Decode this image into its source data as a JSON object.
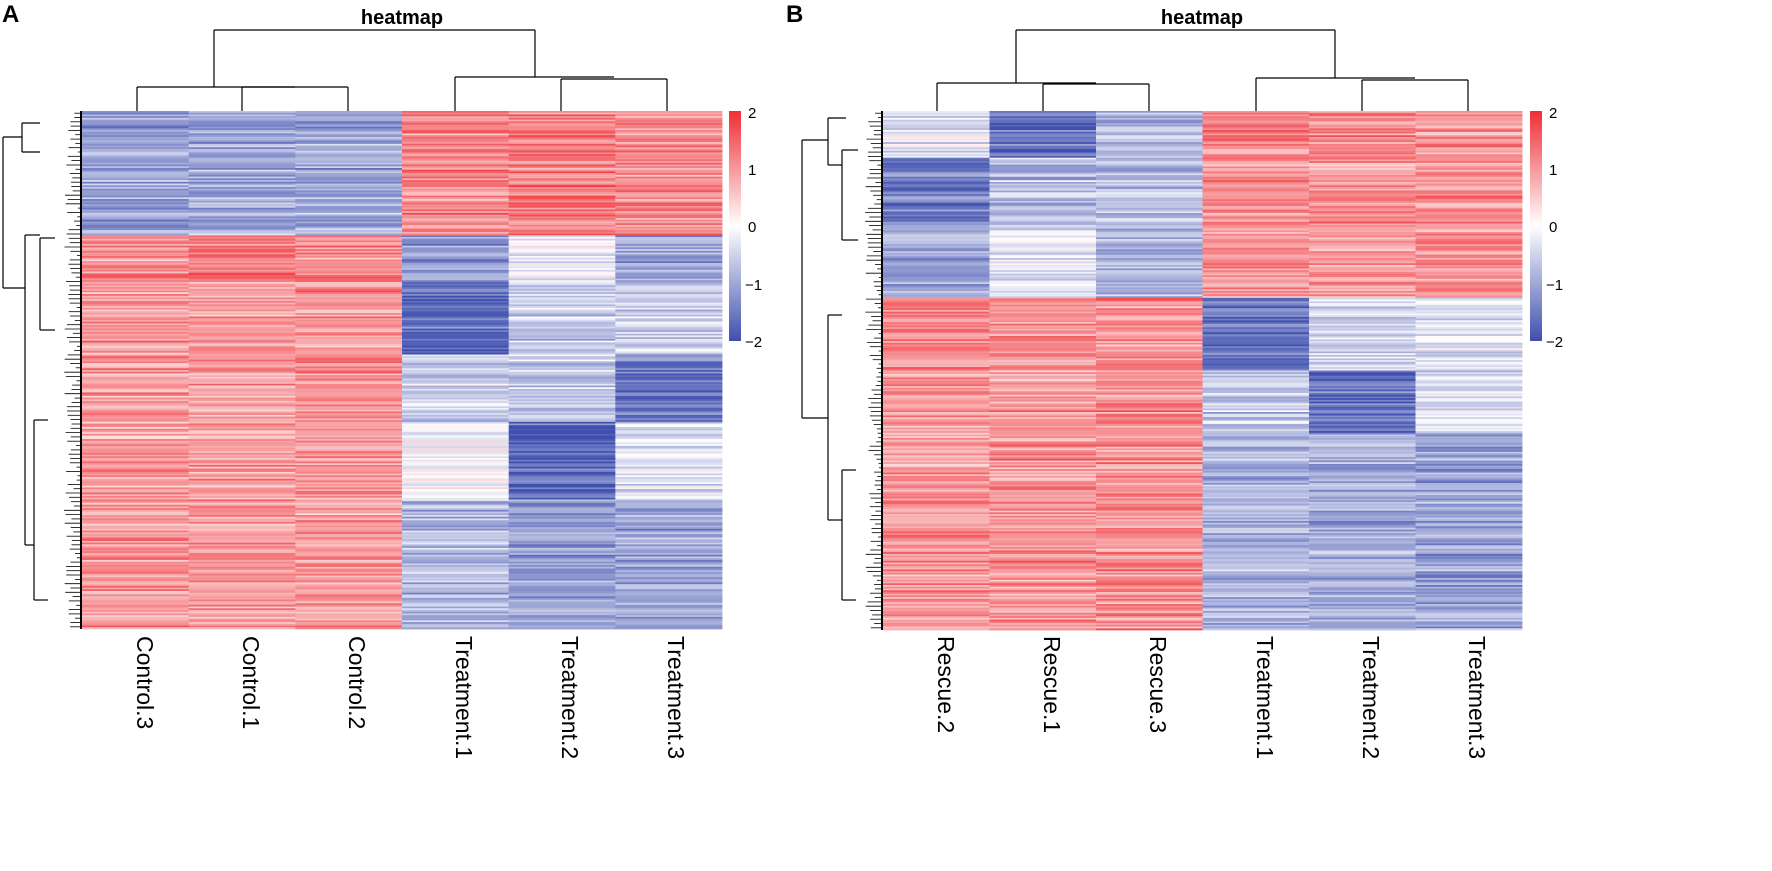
{
  "chart_data": [
    {
      "panel": "A",
      "type": "heatmap",
      "title": "heatmap",
      "columns": [
        "Control.3",
        "Control.1",
        "Control.2",
        "Treatment.1",
        "Treatment.2",
        "Treatment.3"
      ],
      "color_scale": {
        "min": -2,
        "max": 2,
        "ticks": [
          2,
          1,
          0,
          -1,
          -2
        ],
        "tick_labels": [
          "2",
          "1",
          "0",
          "−1",
          "−2"
        ],
        "low_color": "#3F4FAE",
        "mid_color": "#FFFFFF",
        "high_color": "#EE2F35"
      },
      "row_count": 300,
      "row_clusters": [
        {
          "fraction": 0.24,
          "means": [
            -1.1,
            -1.0,
            -1.0,
            1.1,
            1.2,
            1.1
          ]
        },
        {
          "fraction": 0.09,
          "means": [
            1.0,
            1.3,
            1.1,
            -1.1,
            -0.2,
            -1.0
          ]
        },
        {
          "fraction": 0.14,
          "means": [
            1.0,
            1.0,
            1.0,
            -1.7,
            -0.6,
            -0.5
          ]
        },
        {
          "fraction": 0.13,
          "means": [
            1.0,
            1.0,
            1.1,
            -0.5,
            -0.6,
            -1.6
          ]
        },
        {
          "fraction": 0.15,
          "means": [
            1.0,
            1.0,
            1.0,
            -0.1,
            -1.7,
            -0.3
          ]
        },
        {
          "fraction": 0.25,
          "means": [
            1.0,
            1.0,
            1.0,
            -0.8,
            -1.1,
            -1.0
          ]
        }
      ]
    },
    {
      "panel": "B",
      "type": "heatmap",
      "title": "heatmap",
      "columns": [
        "Rescue.2",
        "Rescue.1",
        "Rescue.3",
        "Treatment.1",
        "Treatment.2",
        "Treatment.3"
      ],
      "color_scale": {
        "min": -2,
        "max": 2,
        "ticks": [
          2,
          1,
          0,
          -1,
          -2
        ],
        "tick_labels": [
          "2",
          "1",
          "0",
          "−1",
          "−2"
        ],
        "low_color": "#3F4FAE",
        "mid_color": "#FFFFFF",
        "high_color": "#EE2F35"
      },
      "row_count": 300,
      "row_clusters": [
        {
          "fraction": 0.09,
          "means": [
            -0.3,
            -1.6,
            -0.8,
            1.1,
            1.1,
            1.0
          ]
        },
        {
          "fraction": 0.13,
          "means": [
            -1.4,
            -0.7,
            -0.7,
            1.1,
            1.1,
            1.1
          ]
        },
        {
          "fraction": 0.14,
          "means": [
            -1.0,
            -0.3,
            -0.8,
            1.0,
            1.0,
            1.0
          ]
        },
        {
          "fraction": 0.14,
          "means": [
            1.1,
            1.0,
            1.1,
            -1.6,
            -0.4,
            -0.3
          ]
        },
        {
          "fraction": 0.12,
          "means": [
            1.0,
            1.0,
            1.1,
            -0.6,
            -1.6,
            -0.4
          ]
        },
        {
          "fraction": 0.38,
          "means": [
            1.0,
            1.1,
            1.1,
            -0.8,
            -0.9,
            -1.0
          ]
        }
      ]
    }
  ]
}
